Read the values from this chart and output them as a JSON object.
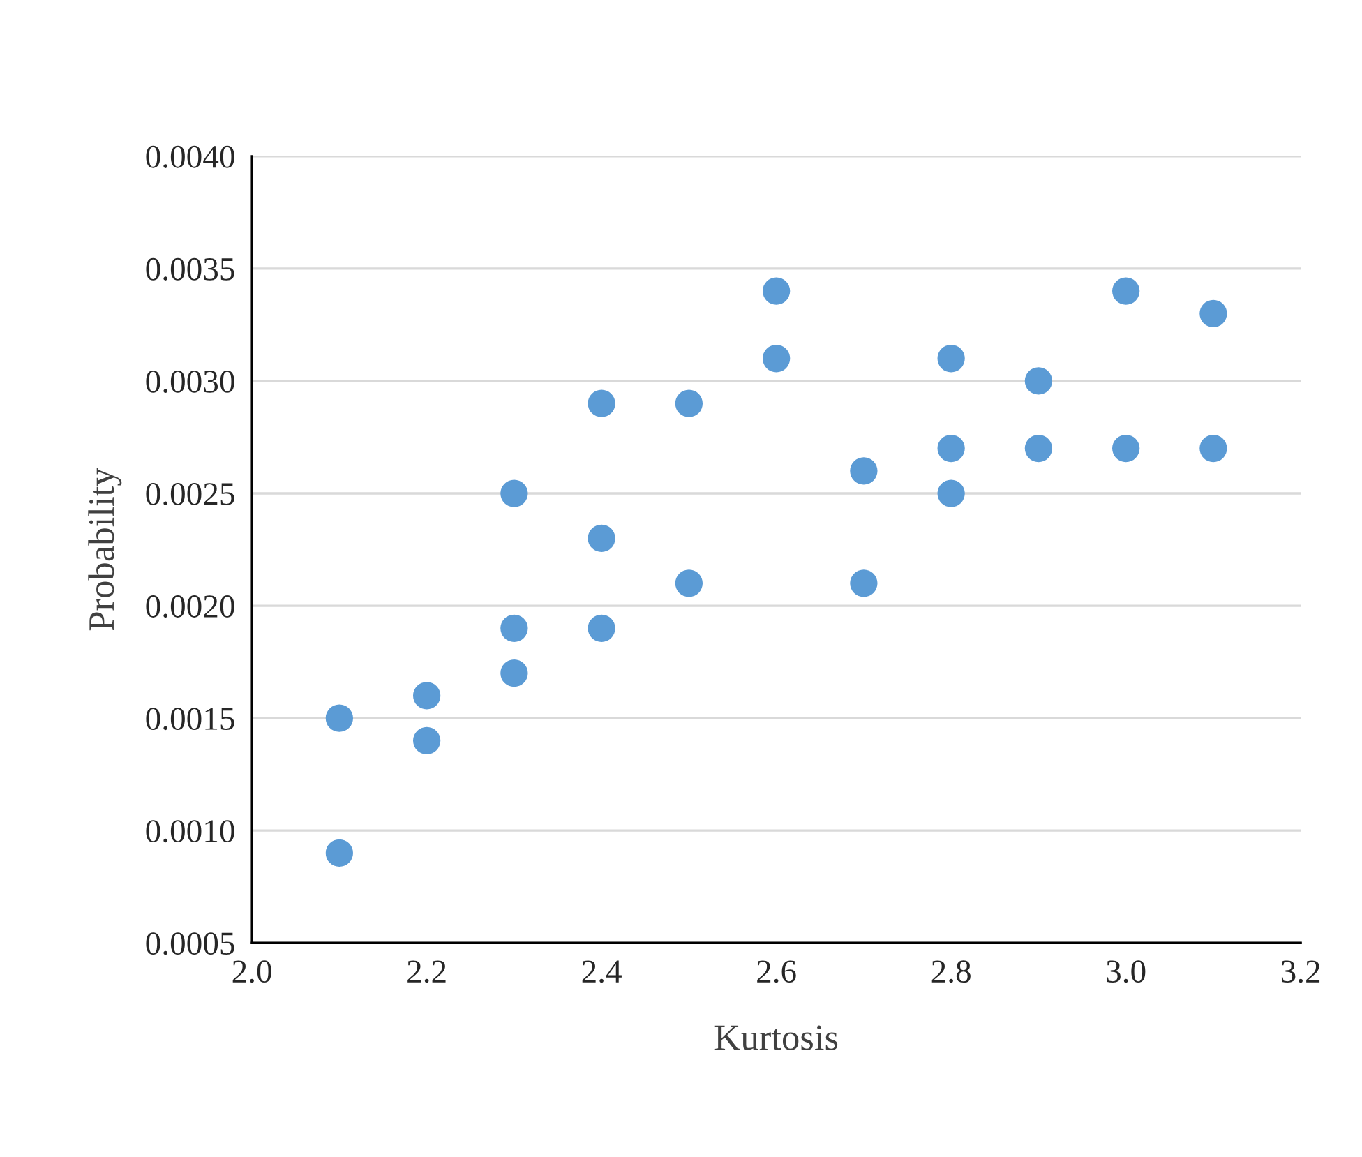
{
  "chart_data": {
    "type": "scatter",
    "xlabel": "Kurtosis",
    "ylabel": "Probability",
    "x": [
      2.1,
      2.1,
      2.2,
      2.2,
      2.3,
      2.3,
      2.3,
      2.4,
      2.4,
      2.4,
      2.5,
      2.5,
      2.6,
      2.6,
      2.7,
      2.7,
      2.8,
      2.8,
      2.8,
      2.9,
      2.9,
      3.0,
      3.0,
      3.1,
      3.1
    ],
    "series": [
      {
        "color": "#5b9bd5",
        "values": [
          0.0015,
          0.0009,
          0.0016,
          0.0014,
          0.0025,
          0.0019,
          0.0017,
          0.0029,
          0.0023,
          0.0019,
          0.0029,
          0.0021,
          0.0034,
          0.0031,
          0.0026,
          0.0021,
          0.0031,
          0.0027,
          0.0025,
          0.003,
          0.0027,
          0.0034,
          0.0027,
          0.0033,
          0.0027
        ]
      }
    ],
    "xlim": [
      2.0,
      3.2
    ],
    "ylim": [
      0.0005,
      0.004
    ],
    "xticks": [
      {
        "value": 2.0,
        "label": "2.0"
      },
      {
        "value": 2.2,
        "label": "2.2"
      },
      {
        "value": 2.4,
        "label": "2.4"
      },
      {
        "value": 2.6,
        "label": "2.6"
      },
      {
        "value": 2.8,
        "label": "2.8"
      },
      {
        "value": 3.0,
        "label": "3.0"
      },
      {
        "value": 3.2,
        "label": "3.2"
      }
    ],
    "yticks": [
      {
        "value": 0.0005,
        "label": "0.0005"
      },
      {
        "value": 0.001,
        "label": "0.0010"
      },
      {
        "value": 0.0015,
        "label": "0.0015"
      },
      {
        "value": 0.002,
        "label": "0.0020"
      },
      {
        "value": 0.0025,
        "label": "0.0025"
      },
      {
        "value": 0.003,
        "label": "0.0030"
      },
      {
        "value": 0.0035,
        "label": "0.0035"
      },
      {
        "value": 0.004,
        "label": "0.0040"
      }
    ],
    "grid": "y",
    "marker": "circle"
  }
}
